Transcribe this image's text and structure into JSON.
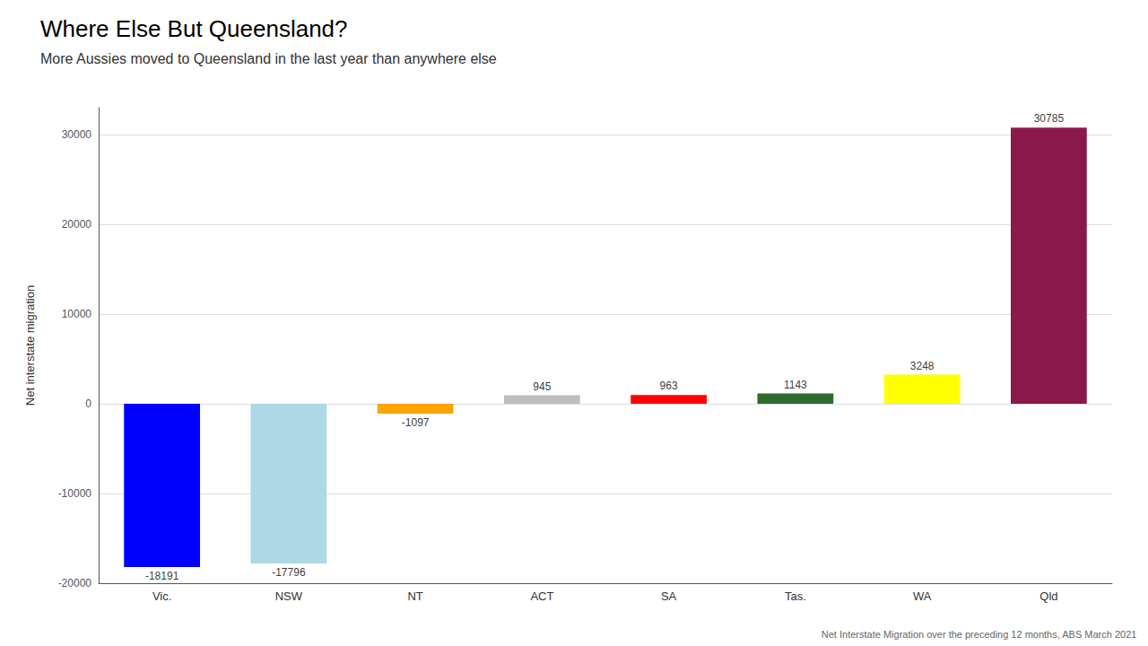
{
  "chart_data": {
    "type": "bar",
    "title": "Where Else But Queensland?",
    "subtitle": "More Aussies moved to Queensland in the last year than anywhere else",
    "annotations": [
      "Net Interstate Migration over the preceding 12 months, ABS March 2021"
    ],
    "ylabel": "Net interstate migration",
    "categories": [
      "Vic.",
      "NSW",
      "NT",
      "ACT",
      "SA",
      "Tas.",
      "WA",
      "Qld"
    ],
    "values": [
      -18191,
      -17796,
      -1097,
      945,
      963,
      1143,
      3248,
      30785
    ],
    "colors": [
      "#0000FF",
      "#ADD8E6",
      "#FFA500",
      "#BEBEBE",
      "#FF0000",
      "#2E6B2E",
      "#FFFF00",
      "#8B1A4A"
    ],
    "ylim": [
      -20000,
      33000
    ],
    "yticks": [
      -20000,
      -10000,
      0,
      10000,
      20000,
      30000
    ],
    "grid": true,
    "data_labels": true
  }
}
